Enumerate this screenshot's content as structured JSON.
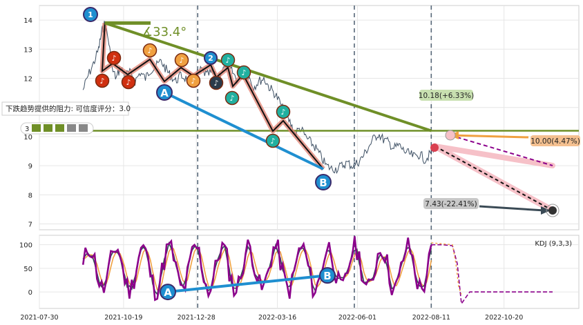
{
  "chart_data": [
    {
      "type": "line",
      "panel": "price",
      "ylim": [
        6.8,
        14.5
      ],
      "yticks": [
        "7",
        "8",
        "9",
        "10",
        "11",
        "12",
        "13",
        "14"
      ],
      "yticks_values": [
        7,
        8,
        9,
        10,
        11,
        12,
        13,
        14
      ],
      "x_range": [
        "2021-07-30",
        "2022-12-31"
      ],
      "grid": true,
      "series": [
        {
          "values_x": [
            "2021-09-10",
            "2021-09-15",
            "2021-09-20",
            "2021-09-25",
            "2021-09-28",
            "2021-10-01",
            "2021-10-05",
            "2021-10-08",
            "2021-10-12",
            "2021-10-16",
            "2021-10-20",
            "2021-10-25",
            "2021-10-30",
            "2021-11-04",
            "2021-11-09",
            "2021-11-14",
            "2021-11-19",
            "2021-11-24",
            "2021-11-29",
            "2021-12-03",
            "2021-12-08",
            "2021-12-13",
            "2021-12-18",
            "2021-12-23",
            "2021-12-28",
            "2022-01-02",
            "2022-01-07",
            "2022-01-12",
            "2022-01-17",
            "2022-01-22",
            "2022-01-27",
            "2022-02-01",
            "2022-02-06",
            "2022-02-11",
            "2022-02-16",
            "2022-02-21",
            "2022-02-26",
            "2022-03-03",
            "2022-03-08",
            "2022-03-13",
            "2022-03-18",
            "2022-03-23",
            "2022-03-28",
            "2022-04-02",
            "2022-04-07",
            "2022-04-12",
            "2022-04-17",
            "2022-04-22",
            "2022-04-27",
            "2022-05-02",
            "2022-05-07",
            "2022-05-12",
            "2022-05-17",
            "2022-05-22",
            "2022-05-27",
            "2022-06-01",
            "2022-06-06",
            "2022-06-11",
            "2022-06-16",
            "2022-06-21",
            "2022-06-26",
            "2022-07-01",
            "2022-07-06",
            "2022-07-11",
            "2022-07-16",
            "2022-07-21",
            "2022-07-26",
            "2022-07-31",
            "2022-08-05",
            "2022-08-10",
            "2022-08-15"
          ],
          "values_y": [
            11.6,
            12.1,
            12.5,
            13.0,
            13.6,
            13.9,
            13.2,
            12.3,
            12.0,
            12.4,
            12.1,
            12.2,
            11.9,
            12.2,
            12.0,
            12.3,
            12.4,
            12.6,
            12.3,
            12.1,
            11.9,
            12.1,
            12.0,
            11.8,
            12.1,
            12.3,
            12.1,
            12.2,
            12.0,
            12.3,
            12.4,
            12.2,
            11.9,
            12.2,
            12.1,
            11.7,
            11.9,
            12.0,
            11.7,
            11.5,
            11.2,
            10.8,
            10.5,
            10.1,
            10.3,
            10.0,
            9.8,
            9.6,
            9.3,
            9.0,
            8.9,
            8.9,
            9.0,
            9.1,
            9.0,
            9.1,
            9.3,
            9.6,
            9.9,
            10.1,
            9.9,
            9.8,
            9.6,
            9.7,
            9.5,
            9.4,
            9.3,
            9.4,
            9.2,
            9.4,
            9.6
          ]
        }
      ],
      "annotations": {
        "angle_label": "∡33.4°",
        "resistance_text": "下跌趋势提供的阻力: 可信度评分：3.0",
        "resistance_score_label": "3",
        "resistance_level": 10.2,
        "target_up": {
          "label": "10.00(4.47%)",
          "value": 10.0
        },
        "target_mid": {
          "label": "10.18(+6.33%)",
          "value": 10.18
        },
        "target_down": {
          "label": "7.43(-22.41%)",
          "value": 7.43
        },
        "point_labels": [
          "1",
          "2",
          "A",
          "B"
        ]
      }
    },
    {
      "type": "line",
      "panel": "indicator",
      "title": "KDJ (9,3,3)",
      "ylim": [
        -35,
        120
      ],
      "yticks": [
        "0",
        "50",
        "100"
      ],
      "yticks_values": [
        0,
        50,
        100
      ],
      "point_labels": [
        "A",
        "B"
      ]
    }
  ],
  "x_axis": {
    "ticks": [
      "2021-07-30",
      "2021-10-19",
      "2021-12-28",
      "2022-03-16",
      "2022-06-01",
      "2022-08-11",
      "2022-10-20"
    ]
  },
  "colors": {
    "price": "#3d4f63",
    "trend_green": "#6f8f27",
    "trend_blue": "#1f8fd0",
    "salmon": "#e08070",
    "pink_band": "#f6c1c8",
    "k_line": "#8b008b",
    "d_line": "#f0a040",
    "j_line": "#2f4f4f",
    "red_marker": "#d03010",
    "orange_marker": "#f0a040",
    "teal_marker": "#20b0a0",
    "navy_marker": "#2a3a4a"
  }
}
